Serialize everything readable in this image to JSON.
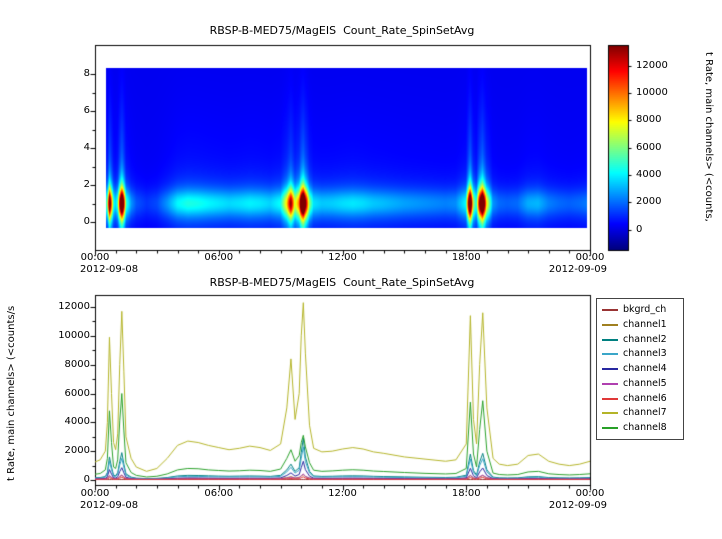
{
  "colorbar": {
    "label": "t Rate, main channels> (<counts,"
  },
  "chart_data": [
    {
      "type": "heatmap",
      "title": "RBSP-B-MED75/MagEIS  Count_Rate_SpinSetAvg",
      "x_tick_labels": [
        "00:00",
        "06:00",
        "12:00",
        "18:00",
        "00:00"
      ],
      "x_start_date": "2012-09-08",
      "x_end_date": "2012-09-09",
      "x_range_hours": [
        0,
        24
      ],
      "ylim": [
        -1.5,
        9.5
      ],
      "y_tick_values": [
        0,
        2,
        4,
        6,
        8
      ],
      "zlim": [
        -1500,
        13500
      ],
      "colormap": "jet",
      "colorbar_tick_values": [
        0,
        2000,
        4000,
        6000,
        8000,
        10000,
        12000
      ],
      "colorbar_label": "t Rate, main channels> (<counts,",
      "data_time_extent_hours": [
        0.55,
        23.85
      ],
      "data_y_extent": [
        -0.3,
        8.3
      ],
      "emission": {
        "center_y": 1.0,
        "core_sigma": 0.5,
        "mid_sigma": 1.0,
        "mid_fraction": 0.45,
        "plume_sigma": 3.4,
        "plume_fraction": 0.18,
        "background": 150,
        "amplitude_source": "channel7"
      }
    },
    {
      "type": "line",
      "title": "RBSP-B-MED75/MagEIS  Count_Rate_SpinSetAvg",
      "ylabel": "t Rate, main channels> (<counts/s",
      "ylim": [
        -400,
        12900
      ],
      "y_tick_values": [
        0,
        2000,
        4000,
        6000,
        8000,
        10000,
        12000
      ],
      "x_tick_labels": [
        "00:00",
        "06:00",
        "12:00",
        "18:00",
        "00:00"
      ],
      "x_start_date": "2012-09-08",
      "x_end_date": "2012-09-09",
      "grid": false,
      "legend_position": "outside-right",
      "x_hours": [
        0,
        0.25,
        0.5,
        0.6,
        0.7,
        0.8,
        0.9,
        1.0,
        1.1,
        1.2,
        1.3,
        1.4,
        1.5,
        1.75,
        2.0,
        2.5,
        3.0,
        3.5,
        4.0,
        4.5,
        5.0,
        5.5,
        6.0,
        6.5,
        7.0,
        7.5,
        8.0,
        8.5,
        9.0,
        9.3,
        9.5,
        9.7,
        9.9,
        10.0,
        10.1,
        10.2,
        10.4,
        10.6,
        11.0,
        11.5,
        12.0,
        12.5,
        13.0,
        13.5,
        14.0,
        15.0,
        16.0,
        17.0,
        17.5,
        18.0,
        18.2,
        18.35,
        18.5,
        18.65,
        18.8,
        19.0,
        19.3,
        19.6,
        20.0,
        20.5,
        21.0,
        21.5,
        22.0,
        22.5,
        23.0,
        23.5,
        24.0
      ],
      "series": [
        {
          "name": "bkgrd_ch",
          "color": "#993333",
          "values": [
            35,
            35,
            35,
            35,
            35,
            35,
            35,
            35,
            35,
            35,
            35,
            35,
            35,
            35,
            35,
            35,
            35,
            35,
            35,
            35,
            35,
            35,
            35,
            35,
            35,
            35,
            35,
            35,
            35,
            35,
            35,
            35,
            35,
            35,
            35,
            35,
            35,
            35,
            35,
            35,
            35,
            35,
            35,
            35,
            35,
            35,
            35,
            35,
            35,
            35,
            35,
            35,
            35,
            35,
            35,
            35,
            35,
            35,
            35,
            35,
            35,
            35,
            35,
            35,
            35,
            35,
            35
          ]
        },
        {
          "name": "channel1",
          "color": "#a08020",
          "values": [
            90,
            92,
            100,
            140,
            280,
            170,
            100,
            95,
            130,
            230,
            320,
            200,
            115,
            95,
            85,
            78,
            82,
            90,
            105,
            110,
            109,
            106,
            104,
            102,
            104,
            106,
            104,
            100,
            110,
            160,
            230,
            140,
            185,
            280,
            380,
            230,
            140,
            104,
            100,
            102,
            105,
            107,
            105,
            102,
            100,
            95,
            91,
            88,
            91,
            115,
            300,
            150,
            108,
            215,
            310,
            150,
            92,
            84,
            82,
            84,
            98,
            101,
            88,
            84,
            82,
            84,
            88
          ]
        },
        {
          "name": "channel2",
          "color": "#008080",
          "values": [
            160,
            170,
            240,
            520,
            1600,
            900,
            330,
            300,
            500,
            1300,
            1900,
            1100,
            430,
            200,
            130,
            90,
            110,
            170,
            280,
            320,
            310,
            290,
            270,
            260,
            270,
            280,
            270,
            250,
            320,
            700,
            1100,
            600,
            850,
            1900,
            2900,
            1600,
            600,
            280,
            250,
            260,
            280,
            290,
            280,
            255,
            240,
            215,
            190,
            175,
            190,
            330,
            1800,
            650,
            350,
            1250,
            1850,
            700,
            200,
            150,
            140,
            150,
            220,
            235,
            170,
            150,
            140,
            150,
            170
          ]
        },
        {
          "name": "channel3",
          "color": "#3aa6c8",
          "values": [
            130,
            140,
            195,
            420,
            1300,
            720,
            265,
            240,
            400,
            1050,
            1500,
            880,
            345,
            160,
            105,
            72,
            90,
            135,
            225,
            255,
            250,
            230,
            215,
            210,
            215,
            225,
            215,
            200,
            255,
            560,
            880,
            480,
            680,
            1500,
            2300,
            1280,
            480,
            225,
            200,
            210,
            225,
            230,
            225,
            205,
            190,
            170,
            150,
            140,
            150,
            265,
            1450,
            520,
            280,
            1000,
            1480,
            560,
            160,
            120,
            112,
            120,
            175,
            190,
            135,
            120,
            112,
            120,
            135
          ]
        },
        {
          "name": "channel4",
          "color": "#2828a0",
          "values": [
            72,
            77,
            108,
            234,
            720,
            405,
            149,
            135,
            225,
            585,
            855,
            495,
            194,
            90,
            59,
            41,
            50,
            77,
            126,
            144,
            140,
            131,
            122,
            117,
            122,
            126,
            122,
            113,
            144,
            315,
            495,
            270,
            383,
            855,
            1300,
            720,
            270,
            126,
            113,
            117,
            126,
            131,
            126,
            115,
            108,
            97,
            86,
            79,
            86,
            149,
            810,
            293,
            158,
            563,
            833,
            315,
            90,
            68,
            63,
            68,
            99,
            106,
            77,
            68,
            63,
            68,
            77
          ]
        },
        {
          "name": "channel5",
          "color": "#b040b0",
          "values": [
            70,
            72,
            80,
            110,
            300,
            180,
            85,
            80,
            105,
            250,
            350,
            220,
            100,
            75,
            62,
            55,
            60,
            68,
            80,
            85,
            84,
            82,
            80,
            78,
            80,
            82,
            80,
            77,
            85,
            130,
            200,
            120,
            160,
            300,
            420,
            250,
            120,
            80,
            77,
            78,
            80,
            82,
            80,
            78,
            76,
            72,
            68,
            65,
            68,
            90,
            330,
            140,
            95,
            230,
            340,
            140,
            72,
            63,
            60,
            63,
            75,
            78,
            66,
            63,
            60,
            63,
            66
          ]
        },
        {
          "name": "channel6",
          "color": "#e03838",
          "values": [
            45,
            46,
            50,
            65,
            160,
            100,
            52,
            50,
            62,
            130,
            190,
            120,
            58,
            48,
            42,
            38,
            40,
            45,
            52,
            55,
            54,
            53,
            52,
            51,
            52,
            53,
            52,
            50,
            55,
            75,
            105,
            68,
            88,
            160,
            220,
            135,
            70,
            52,
            50,
            51,
            52,
            53,
            52,
            51,
            50,
            48,
            46,
            44,
            46,
            58,
            175,
            80,
            56,
            125,
            180,
            80,
            46,
            42,
            40,
            42,
            49,
            51,
            44,
            42,
            40,
            42,
            44
          ]
        },
        {
          "name": "channel7",
          "color": "#b4b428",
          "values": [
            1250,
            1400,
            2000,
            4000,
            9900,
            6000,
            2600,
            2100,
            3200,
            8000,
            11700,
            7500,
            3000,
            1500,
            900,
            600,
            800,
            1500,
            2400,
            2700,
            2600,
            2400,
            2250,
            2100,
            2200,
            2350,
            2250,
            2050,
            2500,
            5000,
            8400,
            4200,
            6000,
            10000,
            12300,
            8800,
            3800,
            2200,
            1950,
            2000,
            2150,
            2250,
            2150,
            1950,
            1850,
            1600,
            1450,
            1300,
            1400,
            2500,
            11400,
            4200,
            2500,
            8000,
            11600,
            5000,
            1500,
            1100,
            1000,
            1100,
            1700,
            1800,
            1300,
            1100,
            1000,
            1100,
            1300
          ]
        },
        {
          "name": "channel8",
          "color": "#28a028",
          "values": [
            400,
            450,
            700,
            1500,
            4800,
            2600,
            900,
            800,
            1400,
            4100,
            6000,
            3400,
            1200,
            520,
            320,
            210,
            260,
            420,
            700,
            800,
            780,
            700,
            660,
            620,
            640,
            680,
            660,
            600,
            760,
            1500,
            2100,
            1300,
            1700,
            2600,
            3100,
            2300,
            1200,
            680,
            600,
            630,
            680,
            710,
            680,
            620,
            590,
            520,
            460,
            420,
            450,
            800,
            5400,
            1800,
            900,
            3500,
            5500,
            2000,
            480,
            380,
            350,
            380,
            560,
            600,
            430,
            380,
            350,
            380,
            430
          ]
        }
      ]
    }
  ]
}
